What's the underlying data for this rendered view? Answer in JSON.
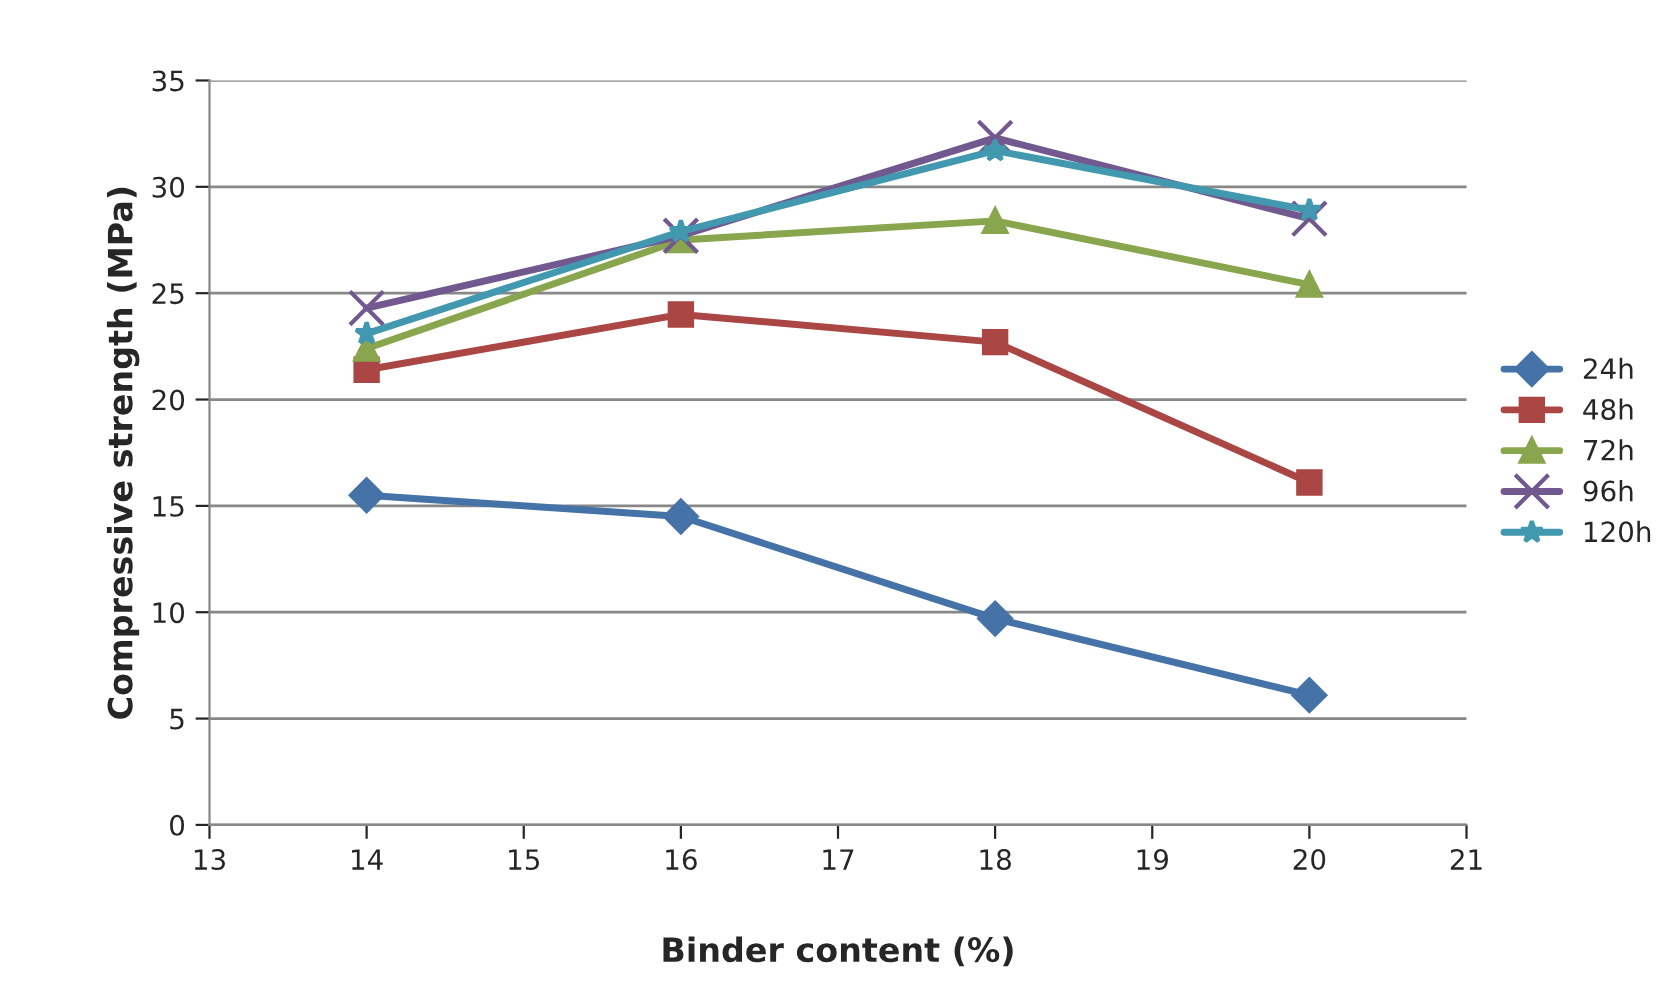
{
  "chart_data": {
    "type": "line",
    "xlabel": "Binder content (%)",
    "ylabel": "Compressive strength (MPa)",
    "x": [
      14,
      16,
      18,
      20
    ],
    "series": [
      {
        "name": "24h",
        "color": "#4572a7",
        "marker": "diamond",
        "values": [
          15.5,
          14.5,
          9.7,
          6.1
        ]
      },
      {
        "name": "48h",
        "color": "#aa4643",
        "marker": "square",
        "values": [
          21.4,
          24.0,
          22.7,
          16.1
        ]
      },
      {
        "name": "72h",
        "color": "#89a54e",
        "marker": "triangle",
        "values": [
          22.4,
          27.5,
          28.4,
          25.4
        ]
      },
      {
        "name": "96h",
        "color": "#71588f",
        "marker": "cross",
        "values": [
          24.3,
          27.7,
          32.3,
          28.5
        ]
      },
      {
        "name": "120h",
        "color": "#4198af",
        "marker": "star",
        "values": [
          23.1,
          27.9,
          31.7,
          28.9
        ]
      }
    ],
    "xlim": [
      13,
      21
    ],
    "xticks": [
      13,
      14,
      15,
      16,
      17,
      18,
      19,
      20,
      21
    ],
    "ylim": [
      0,
      35
    ],
    "yticks": [
      0,
      5,
      10,
      15,
      20,
      25,
      30,
      35
    ],
    "grid": "y",
    "legend": "right"
  }
}
